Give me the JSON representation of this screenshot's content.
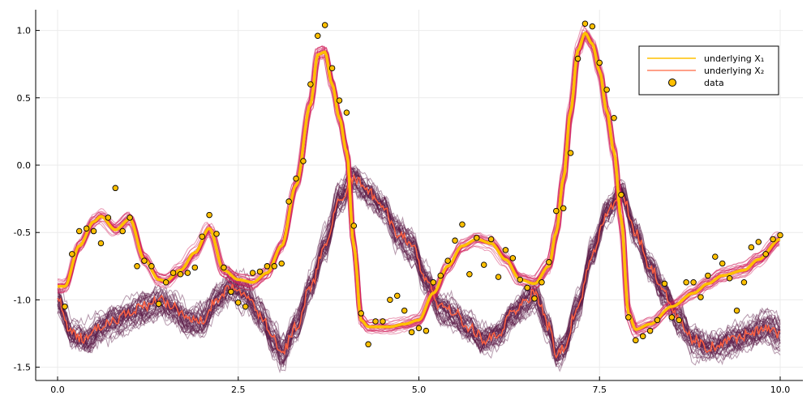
{
  "chart_data": {
    "type": "line",
    "title": "",
    "xlabel": "",
    "ylabel": "",
    "xlim": [
      -0.3,
      10.3
    ],
    "ylim": [
      -1.6,
      1.15
    ],
    "xticks": [
      0.0,
      2.5,
      5.0,
      7.5,
      10.0
    ],
    "xtick_labels": [
      "0.0",
      "2.5",
      "5.0",
      "7.5",
      "10.0"
    ],
    "yticks": [
      1.0,
      0.5,
      0.0,
      -0.5,
      -1.0,
      -1.5
    ],
    "ytick_labels": [
      "1.0",
      "0.5",
      "0.0",
      "-0.5",
      "-1.0",
      "-1.5"
    ],
    "grid": true,
    "legend_position": "top-right",
    "colors": {
      "x1": "#FFC000",
      "x2": "#FF6040",
      "x1_samples": "#D0205A",
      "x2_samples": "#5A1A48",
      "data": "#FFC000"
    },
    "series": [
      {
        "name": "underlying X₁",
        "x": [
          0,
          0.1,
          0.3,
          0.5,
          0.6,
          0.8,
          1.0,
          1.2,
          1.4,
          1.5,
          1.7,
          1.9,
          2.1,
          2.3,
          2.5,
          2.7,
          2.9,
          3.1,
          3.3,
          3.5,
          3.6,
          3.7,
          3.8,
          3.9,
          4.0,
          4.1,
          4.2,
          4.3,
          4.6,
          4.8,
          5.0,
          5.2,
          5.4,
          5.6,
          5.8,
          6.0,
          6.2,
          6.4,
          6.6,
          6.8,
          6.9,
          7.0,
          7.1,
          7.2,
          7.3,
          7.4,
          7.5,
          7.6,
          7.7,
          7.8,
          7.9,
          8.0,
          8.2,
          8.5,
          8.8,
          9.0,
          9.2,
          9.5,
          9.7,
          10.0
        ],
        "y": [
          -0.9,
          -0.9,
          -0.6,
          -0.42,
          -0.38,
          -0.48,
          -0.4,
          -0.7,
          -0.85,
          -0.86,
          -0.78,
          -0.65,
          -0.47,
          -0.78,
          -0.85,
          -0.87,
          -0.8,
          -0.6,
          -0.15,
          0.45,
          0.82,
          0.84,
          0.6,
          0.35,
          0.1,
          -0.6,
          -1.15,
          -1.2,
          -1.2,
          -1.18,
          -1.15,
          -0.95,
          -0.75,
          -0.6,
          -0.55,
          -0.58,
          -0.7,
          -0.85,
          -0.88,
          -0.75,
          -0.5,
          -0.1,
          0.4,
          0.85,
          0.98,
          0.9,
          0.7,
          0.4,
          0.1,
          -0.4,
          -1.1,
          -1.22,
          -1.18,
          -1.05,
          -0.95,
          -0.88,
          -0.82,
          -0.78,
          -0.7,
          -0.55
        ]
      },
      {
        "name": "underlying X₂",
        "x": [
          0,
          0.2,
          0.4,
          0.6,
          0.8,
          1.0,
          1.2,
          1.4,
          1.6,
          1.8,
          2.0,
          2.2,
          2.4,
          2.6,
          2.8,
          3.0,
          3.1,
          3.3,
          3.5,
          3.7,
          3.9,
          4.1,
          4.3,
          4.5,
          4.7,
          4.9,
          5.1,
          5.3,
          5.5,
          5.7,
          5.9,
          6.1,
          6.3,
          6.5,
          6.6,
          6.8,
          6.9,
          7.0,
          7.2,
          7.4,
          7.6,
          7.8,
          8.0,
          8.2,
          8.4,
          8.6,
          8.8,
          9.0,
          9.3,
          9.6,
          9.8,
          10.0
        ],
        "y": [
          -1.0,
          -1.25,
          -1.3,
          -1.2,
          -1.15,
          -1.1,
          -1.05,
          -1.0,
          -1.05,
          -1.15,
          -1.15,
          -1.0,
          -0.9,
          -0.95,
          -1.1,
          -1.3,
          -1.4,
          -1.2,
          -0.9,
          -0.6,
          -0.25,
          -0.1,
          -0.2,
          -0.3,
          -0.5,
          -0.6,
          -0.85,
          -1.05,
          -1.1,
          -1.2,
          -1.3,
          -1.25,
          -1.1,
          -1.0,
          -0.95,
          -1.2,
          -1.4,
          -1.35,
          -1.05,
          -0.65,
          -0.35,
          -0.2,
          -0.5,
          -0.75,
          -0.95,
          -1.15,
          -1.3,
          -1.35,
          -1.3,
          -1.25,
          -1.2,
          -1.25
        ]
      },
      {
        "name": "data",
        "type": "scatter",
        "x": [
          0.1,
          0.2,
          0.3,
          0.4,
          0.5,
          0.6,
          0.7,
          0.8,
          0.9,
          1.0,
          1.1,
          1.2,
          1.3,
          1.4,
          1.5,
          1.6,
          1.7,
          1.8,
          1.9,
          2.0,
          2.1,
          2.2,
          2.3,
          2.4,
          2.5,
          2.6,
          2.7,
          2.8,
          2.9,
          3.0,
          3.1,
          3.2,
          3.3,
          3.4,
          3.5,
          3.6,
          3.7,
          3.8,
          3.9,
          4.0,
          4.1,
          4.2,
          4.3,
          4.4,
          4.5,
          4.6,
          4.7,
          4.8,
          4.9,
          5.0,
          5.1,
          5.2,
          5.3,
          5.4,
          5.5,
          5.6,
          5.7,
          5.8,
          5.9,
          6.0,
          6.1,
          6.2,
          6.3,
          6.4,
          6.5,
          6.6,
          6.7,
          6.8,
          6.9,
          7.0,
          7.1,
          7.2,
          7.3,
          7.4,
          7.5,
          7.6,
          7.7,
          7.8,
          7.9,
          8.0,
          8.1,
          8.2,
          8.3,
          8.4,
          8.5,
          8.6,
          8.7,
          8.8,
          8.9,
          9.0,
          9.1,
          9.2,
          9.3,
          9.4,
          9.5,
          9.6,
          9.7,
          9.8,
          9.9,
          10.0
        ],
        "y": [
          -1.05,
          -0.66,
          -0.49,
          -0.47,
          -0.49,
          -0.58,
          -0.39,
          -0.17,
          -0.49,
          -0.39,
          -0.75,
          -0.71,
          -0.75,
          -1.03,
          -0.87,
          -0.8,
          -0.81,
          -0.8,
          -0.76,
          -0.53,
          -0.37,
          -0.51,
          -0.76,
          -0.94,
          -1.02,
          -1.05,
          -0.8,
          -0.79,
          -0.75,
          -0.75,
          -0.73,
          -0.27,
          -0.1,
          0.03,
          0.6,
          0.96,
          1.04,
          0.72,
          0.48,
          0.39,
          -0.45,
          -1.1,
          -1.33,
          -1.16,
          -1.16,
          -1.0,
          -0.97,
          -1.08,
          -1.24,
          -1.21,
          -1.23,
          -0.87,
          -0.82,
          -0.71,
          -0.56,
          -0.44,
          -0.81,
          -0.54,
          -0.74,
          -0.55,
          -0.83,
          -0.63,
          -0.69,
          -0.85,
          -0.91,
          -0.99,
          -0.87,
          -0.72,
          -0.34,
          -0.32,
          0.09,
          0.79,
          1.05,
          1.03,
          0.76,
          0.56,
          0.35,
          -0.22,
          -1.13,
          -1.3,
          -1.27,
          -1.23,
          -1.15,
          -0.88,
          -1.13,
          -1.15,
          -0.87,
          -0.87,
          -0.98,
          -0.82,
          -0.68,
          -0.73,
          -0.84,
          -1.08,
          -0.87,
          -0.61,
          -0.57,
          -0.66,
          -0.55,
          -0.52
        ]
      }
    ]
  }
}
